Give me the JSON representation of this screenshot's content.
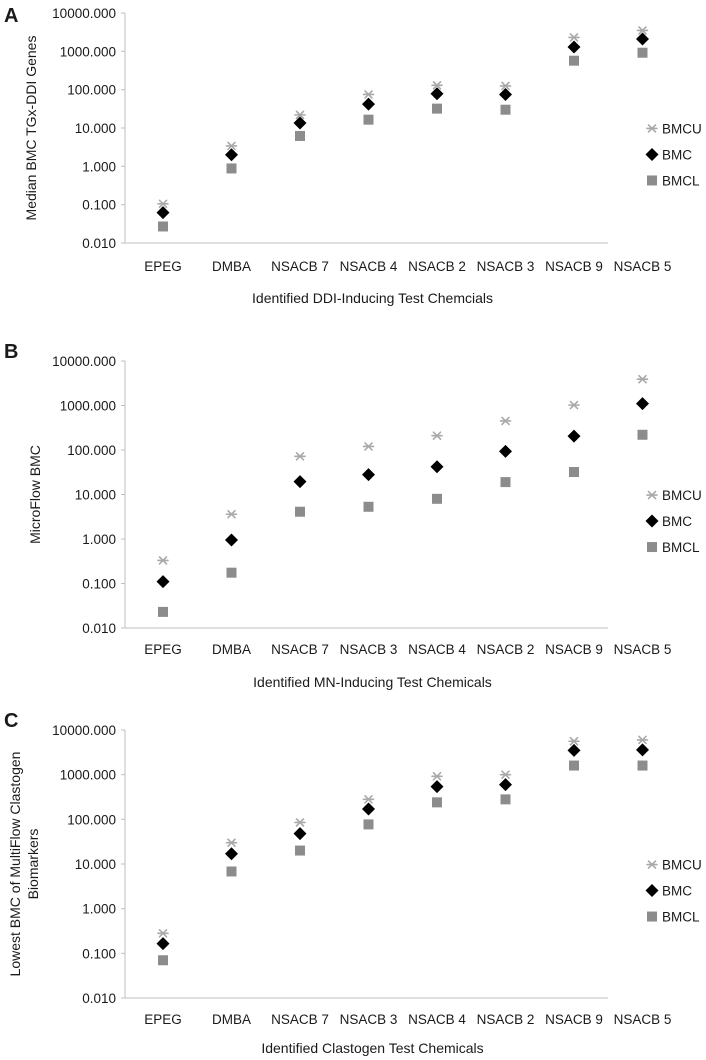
{
  "colors": {
    "BMCU": "#a9a9a9",
    "BMC": "#000000",
    "BMCL": "#8c8c8c",
    "axis": "#bfbfbf"
  },
  "chart_data": [
    {
      "panel": "A",
      "type": "scatter",
      "yscale": "log",
      "ylim": [
        0.01,
        10000
      ],
      "yticks": [
        "0.010",
        "0.100",
        "1.000",
        "10.000",
        "100.000",
        "1000.000",
        "10000.000"
      ],
      "ylabel": "Median BMC TGx-DDI Genes",
      "xlabel": "Identified DDI-Inducing Test Chemcials",
      "categories": [
        "EPEG",
        "DMBA",
        "NSACB 7",
        "NSACB 4",
        "NSACB 2",
        "NSACB 3",
        "NSACB 9",
        "NSACB 5"
      ],
      "series": [
        {
          "name": "BMCU",
          "marker": "asterisk",
          "values": [
            0.105,
            3.4,
            22,
            75,
            130,
            125,
            2300,
            3500
          ]
        },
        {
          "name": "BMC",
          "marker": "diamond",
          "values": [
            0.062,
            2.0,
            13.5,
            42,
            78,
            75,
            1300,
            2100
          ]
        },
        {
          "name": "BMCL",
          "marker": "square",
          "values": [
            0.027,
            0.88,
            6.2,
            16.5,
            32,
            30,
            570,
            920
          ]
        }
      ],
      "legend": "right"
    },
    {
      "panel": "B",
      "type": "scatter",
      "yscale": "log",
      "ylim": [
        0.01,
        10000
      ],
      "yticks": [
        "0.010",
        "0.100",
        "1.000",
        "10.000",
        "100.000",
        "1000.000",
        "10000.000"
      ],
      "ylabel": "MicroFlow BMC",
      "xlabel": "Identified MN-Inducing Test Chemicals",
      "categories": [
        "EPEG",
        "DMBA",
        "NSACB 7",
        "NSACB 3",
        "NSACB 4",
        "NSACB 2",
        "NSACB 9",
        "NSACB 5"
      ],
      "series": [
        {
          "name": "BMCU",
          "marker": "asterisk",
          "values": [
            0.33,
            3.6,
            72,
            120,
            210,
            450,
            1020,
            3900
          ]
        },
        {
          "name": "BMC",
          "marker": "diamond",
          "values": [
            0.11,
            0.95,
            19.5,
            28,
            42,
            93,
            205,
            1100
          ]
        },
        {
          "name": "BMCL",
          "marker": "square",
          "values": [
            0.023,
            0.175,
            4.1,
            5.3,
            8.0,
            19,
            32,
            220
          ]
        }
      ],
      "legend": "right"
    },
    {
      "panel": "C",
      "type": "scatter",
      "yscale": "log",
      "ylim": [
        0.01,
        10000
      ],
      "yticks": [
        "0.010",
        "0.100",
        "1.000",
        "10.000",
        "100.000",
        "1000.000",
        "10000.000"
      ],
      "ylabel_lines": [
        "Lowest BMC of MultiFlow Clastogen",
        "Biomarkers"
      ],
      "xlabel": "Identified Clastogen Test Chemicals",
      "categories": [
        "EPEG",
        "DMBA",
        "NSACB 7",
        "NSACB 3",
        "NSACB 4",
        "NSACB 2",
        "NSACB 9",
        "NSACB 5"
      ],
      "series": [
        {
          "name": "BMCU",
          "marker": "asterisk",
          "values": [
            0.28,
            30,
            85,
            280,
            920,
            1000,
            5600,
            6000
          ]
        },
        {
          "name": "BMC",
          "marker": "diamond",
          "values": [
            0.165,
            17,
            48,
            170,
            540,
            600,
            3500,
            3600
          ]
        },
        {
          "name": "BMCL",
          "marker": "square",
          "values": [
            0.07,
            6.8,
            20,
            77,
            240,
            280,
            1600,
            1600
          ]
        }
      ],
      "legend": "right"
    }
  ]
}
